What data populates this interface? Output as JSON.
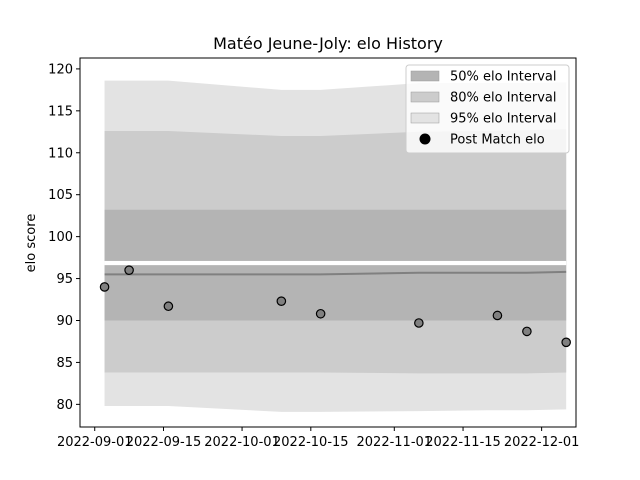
{
  "chart_data": {
    "type": "line",
    "title": "Matéo Jeune-Joly: elo History",
    "xlabel": "",
    "ylabel": "elo score",
    "x_range": [
      "2022-08-29",
      "2022-12-08"
    ],
    "ylim": [
      77.3,
      121.3
    ],
    "x_ticks": [
      {
        "date": "2022-09-01",
        "label": "2022-09-01"
      },
      {
        "date": "2022-09-15",
        "label": "2022-09-15"
      },
      {
        "date": "2022-10-01",
        "label": "2022-10-01"
      },
      {
        "date": "2022-10-15",
        "label": "2022-10-15"
      },
      {
        "date": "2022-11-01",
        "label": "2022-11-01"
      },
      {
        "date": "2022-11-15",
        "label": "2022-11-15"
      },
      {
        "date": "2022-12-01",
        "label": "2022-12-01"
      }
    ],
    "y_ticks": [
      80,
      85,
      90,
      95,
      100,
      105,
      110,
      115,
      120
    ],
    "grid": false,
    "legend_position": "top-right",
    "band_dates": [
      "2022-09-03",
      "2022-09-16",
      "2022-10-09",
      "2022-10-17",
      "2022-11-06",
      "2022-11-20",
      "2022-11-28",
      "2022-12-06"
    ],
    "mean_line": [
      95.5,
      95.5,
      95.5,
      95.5,
      95.7,
      95.7,
      95.7,
      95.8
    ],
    "bands": [
      {
        "name": "95% elo Interval",
        "color": "#e3e3e3",
        "lower": [
          79.8,
          79.8,
          79.1,
          79.1,
          79.2,
          79.3,
          79.3,
          79.4
        ],
        "upper": [
          118.6,
          118.6,
          117.5,
          117.5,
          118.3,
          118.3,
          118.3,
          118.4
        ]
      },
      {
        "name": "80% elo Interval",
        "color": "#cccccc",
        "lower": [
          83.8,
          83.8,
          83.8,
          83.8,
          83.7,
          83.7,
          83.7,
          83.8
        ],
        "upper": [
          112.6,
          112.6,
          112.0,
          112.0,
          112.5,
          112.6,
          112.7,
          112.8
        ]
      },
      {
        "name": "50% elo Interval",
        "color": "#b4b4b4",
        "lower": [
          90.0,
          90.0,
          90.0,
          90.0,
          90.0,
          90.0,
          90.0,
          90.0
        ],
        "upper": [
          103.2,
          103.2,
          103.2,
          103.2,
          103.2,
          103.2,
          103.2,
          103.2
        ]
      }
    ],
    "posterior_gap": [
      96.6,
      97.1
    ],
    "series": [
      {
        "name": "Post Match elo",
        "points": [
          {
            "date": "2022-09-03",
            "elo": 94.0
          },
          {
            "date": "2022-09-08",
            "elo": 96.0
          },
          {
            "date": "2022-09-16",
            "elo": 91.7
          },
          {
            "date": "2022-10-09",
            "elo": 92.3
          },
          {
            "date": "2022-10-17",
            "elo": 90.8
          },
          {
            "date": "2022-11-06",
            "elo": 89.7
          },
          {
            "date": "2022-11-22",
            "elo": 90.6
          },
          {
            "date": "2022-11-28",
            "elo": 88.7
          },
          {
            "date": "2022-12-06",
            "elo": 87.4
          }
        ]
      }
    ],
    "legend": [
      {
        "label": "50% elo Interval",
        "kind": "patch",
        "color": "#b4b4b4"
      },
      {
        "label": "80% elo Interval",
        "kind": "patch",
        "color": "#cccccc"
      },
      {
        "label": "95% elo Interval",
        "kind": "patch",
        "color": "#e3e3e3"
      },
      {
        "label": "Post Match elo",
        "kind": "marker",
        "color": "#000000"
      }
    ],
    "colors": {
      "marker_fill": "#808080",
      "mean_line": "#808080",
      "axis": "#000000"
    }
  }
}
